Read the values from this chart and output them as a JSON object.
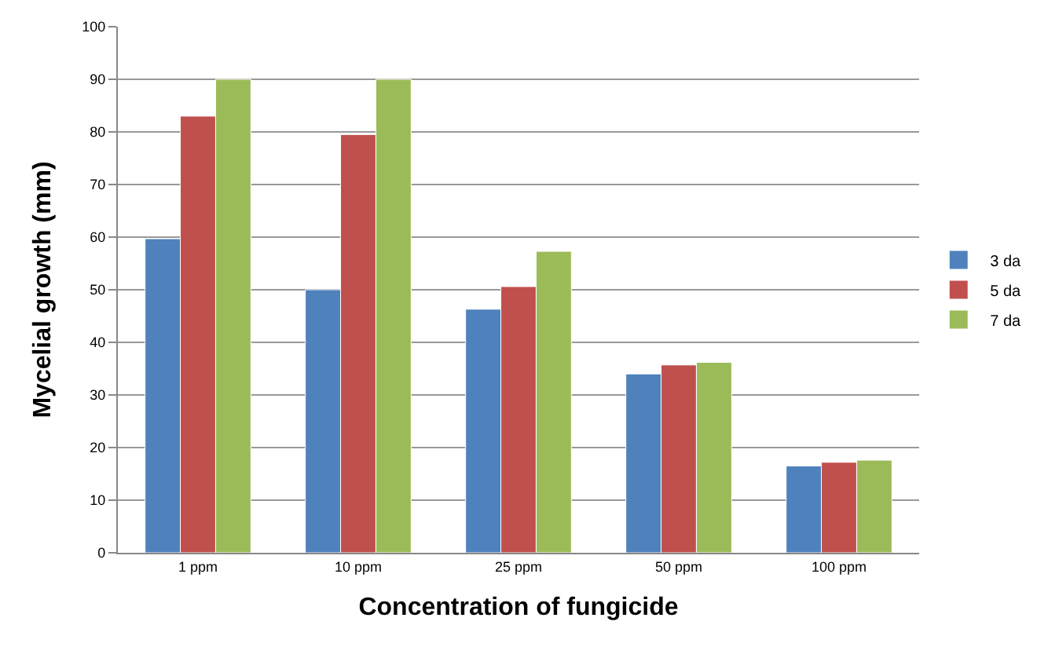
{
  "chart_data": {
    "type": "bar",
    "xlabel": "Concentration of fungicide",
    "ylabel": "Mycelial growth (mm)",
    "categories": [
      "1 ppm",
      "10 ppm",
      "25 ppm",
      "50 ppm",
      "100 ppm"
    ],
    "series": [
      {
        "name": "3 da",
        "color": "#4f81bd",
        "values": [
          59.7,
          50,
          46.3,
          34,
          16.5
        ]
      },
      {
        "name": "5 da",
        "color": "#c0504d",
        "values": [
          83,
          79.5,
          50.6,
          35.7,
          17.2
        ]
      },
      {
        "name": "7 da",
        "color": "#9bbb59",
        "values": [
          90,
          90,
          57.3,
          36.2,
          17.6
        ]
      }
    ],
    "ylim": [
      0,
      100
    ],
    "yticks": [
      0,
      10,
      20,
      30,
      40,
      50,
      60,
      70,
      80,
      90,
      100
    ],
    "grid": "y",
    "legend": "right"
  }
}
